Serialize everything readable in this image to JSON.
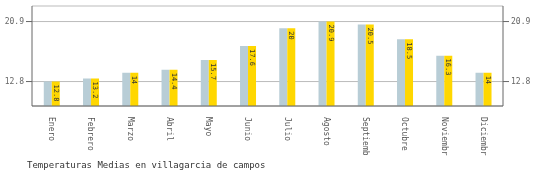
{
  "chart_data": {
    "type": "bar",
    "title": "Temperaturas Medias en villagarcia de campos",
    "categories": [
      "Enero",
      "Febrero",
      "Marzo",
      "Abril",
      "Mayo",
      "Junio",
      "Julio",
      "Agosto",
      "Septiembre",
      "Octubre",
      "Noviembre",
      "Diciembre"
    ],
    "series": [
      {
        "color": "#b8cdd6",
        "values": [
          12.8,
          13.2,
          14.0,
          14.4,
          15.7,
          17.6,
          20.0,
          20.9,
          20.5,
          18.5,
          16.3,
          14.0
        ]
      },
      {
        "color": "#FFD700",
        "values": [
          12.8,
          13.2,
          14.0,
          14.4,
          15.7,
          17.6,
          20.0,
          20.9,
          20.5,
          18.5,
          16.3,
          14.0
        ],
        "data_labels": true
      }
    ],
    "ylim": [
      9.5,
      23.0
    ],
    "yticks": [
      12.8,
      20.9
    ],
    "grid": true
  }
}
